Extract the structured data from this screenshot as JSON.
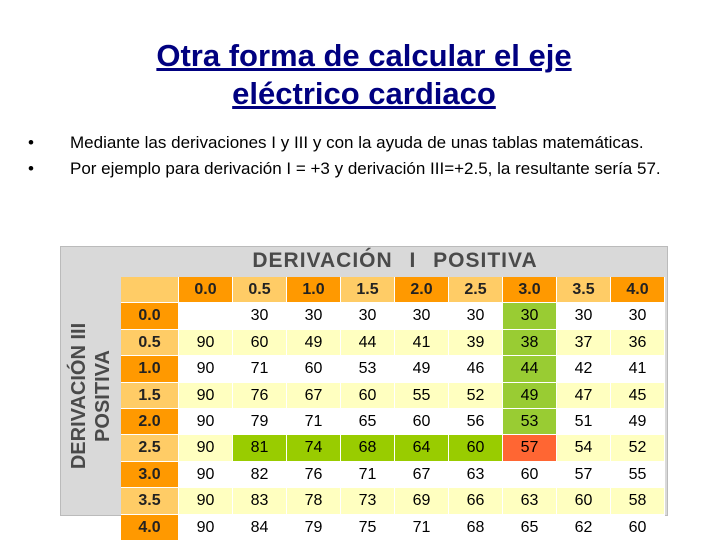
{
  "title_lines": [
    "Otra forma de calcular el eje",
    "eléctrico cardiaco"
  ],
  "bullets": [
    "Mediante las derivaciones I y III y con la ayuda de unas tablas matemáticas.",
    "Por ejemplo para derivación I = +3 y derivación III=+2.5, la resultante sería 57."
  ],
  "table": {
    "top_header": "DERIVACIÓN  I  POSITIVA",
    "side_header": [
      "DERIVACIÓN  III",
      "POSITIVA"
    ],
    "columns": [
      "0.0",
      "0.5",
      "1.0",
      "1.5",
      "2.0",
      "2.5",
      "3.0",
      "3.5",
      "4.0"
    ],
    "row_labels": [
      "0.0",
      "0.5",
      "1.0",
      "1.5",
      "2.0",
      "2.5",
      "3.0",
      "3.5",
      "4.0"
    ],
    "rows": [
      [
        null,
        30,
        30,
        30,
        30,
        30,
        30,
        30,
        30
      ],
      [
        90,
        60,
        49,
        44,
        41,
        39,
        38,
        37,
        36
      ],
      [
        90,
        71,
        60,
        53,
        49,
        46,
        44,
        42,
        41
      ],
      [
        90,
        76,
        67,
        60,
        55,
        52,
        49,
        47,
        45
      ],
      [
        90,
        79,
        71,
        65,
        60,
        56,
        53,
        51,
        49
      ],
      [
        90,
        81,
        74,
        68,
        64,
        60,
        57,
        54,
        52
      ],
      [
        90,
        82,
        76,
        71,
        67,
        63,
        60,
        57,
        55
      ],
      [
        90,
        83,
        78,
        73,
        69,
        66,
        63,
        60,
        58
      ],
      [
        90,
        84,
        79,
        75,
        71,
        68,
        65,
        62,
        60
      ]
    ]
  }
}
